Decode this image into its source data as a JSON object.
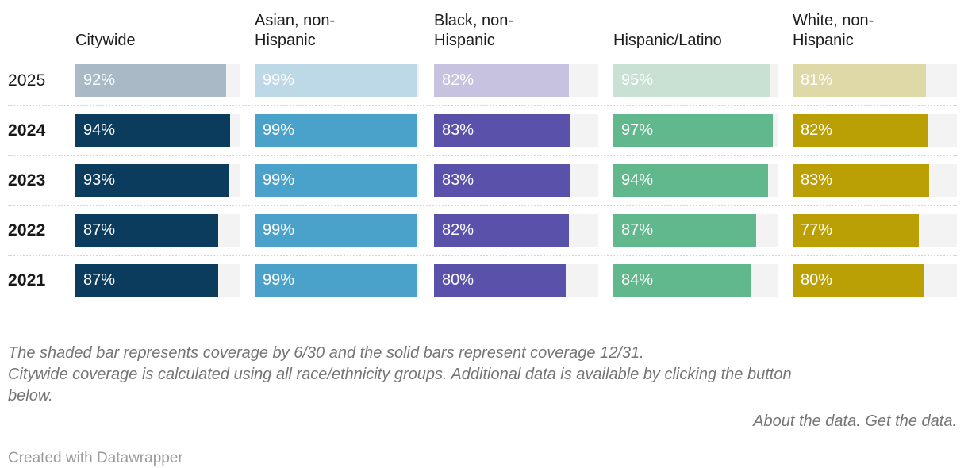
{
  "chart_data": {
    "type": "bar",
    "orientation": "horizontal",
    "unit": "%",
    "xlim": [
      0,
      100
    ],
    "track_color": "#f3f3f3",
    "categories": [
      "2025",
      "2024",
      "2023",
      "2022",
      "2021"
    ],
    "shaded_rows": [
      "2025"
    ],
    "series": [
      {
        "name": "Citywide",
        "color": "#0b3c5e",
        "shaded_color": "#a9b9c5",
        "values": [
          92,
          94,
          93,
          87,
          87
        ]
      },
      {
        "name": "Asian, non-Hispanic",
        "color": "#4aa1ca",
        "shaded_color": "#bdd8e7",
        "values": [
          99,
          99,
          99,
          99,
          99
        ]
      },
      {
        "name": "Black, non-Hispanic",
        "color": "#5a52aa",
        "shaded_color": "#c6c2df",
        "values": [
          82,
          83,
          83,
          82,
          80
        ]
      },
      {
        "name": "Hispanic/Latino",
        "color": "#60b88c",
        "shaded_color": "#c8e1d3",
        "values": [
          95,
          97,
          94,
          87,
          84
        ]
      },
      {
        "name": "White, non-Hispanic",
        "color": "#bba005",
        "shaded_color": "#ded9a6",
        "values": [
          81,
          82,
          83,
          77,
          80
        ]
      }
    ]
  },
  "notes": {
    "line1": "The shaded bar represents coverage by 6/30 and the solid bars represent coverage 12/31.",
    "line2": "Citywide coverage is calculated using all race/ethnicity groups. Additional data is available by clicking the button below."
  },
  "links": {
    "about": "About the data.",
    "get": "Get the data."
  },
  "attribution": "Created with Datawrapper"
}
